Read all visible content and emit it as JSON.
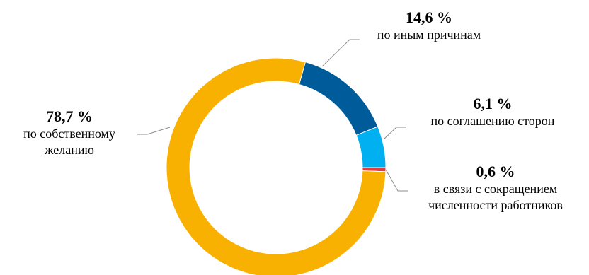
{
  "chart_data": {
    "type": "pie",
    "donut": true,
    "slices": [
      {
        "category": "по иным причинам",
        "value": 14.6,
        "label": "14,6 %",
        "color": "#005B9A"
      },
      {
        "category": "по соглашению сторон",
        "value": 6.1,
        "label": "6,1 %",
        "color": "#00B0F0"
      },
      {
        "category": "в связи с сокращением численности работников",
        "value": 0.6,
        "label": "0,6 %",
        "color": "#E8383D"
      },
      {
        "category": "по собственному желанию",
        "value": 78.7,
        "label": "78,7 %",
        "color": "#F8B100"
      }
    ],
    "captions": {
      "other_line1": "по иным причинам",
      "agreement_line1": "по соглашению сторон",
      "reduction_line1": "в связи с сокращением",
      "reduction_line2": "численности работников",
      "own_line1": "по собственному",
      "own_line2": "желанию"
    }
  }
}
